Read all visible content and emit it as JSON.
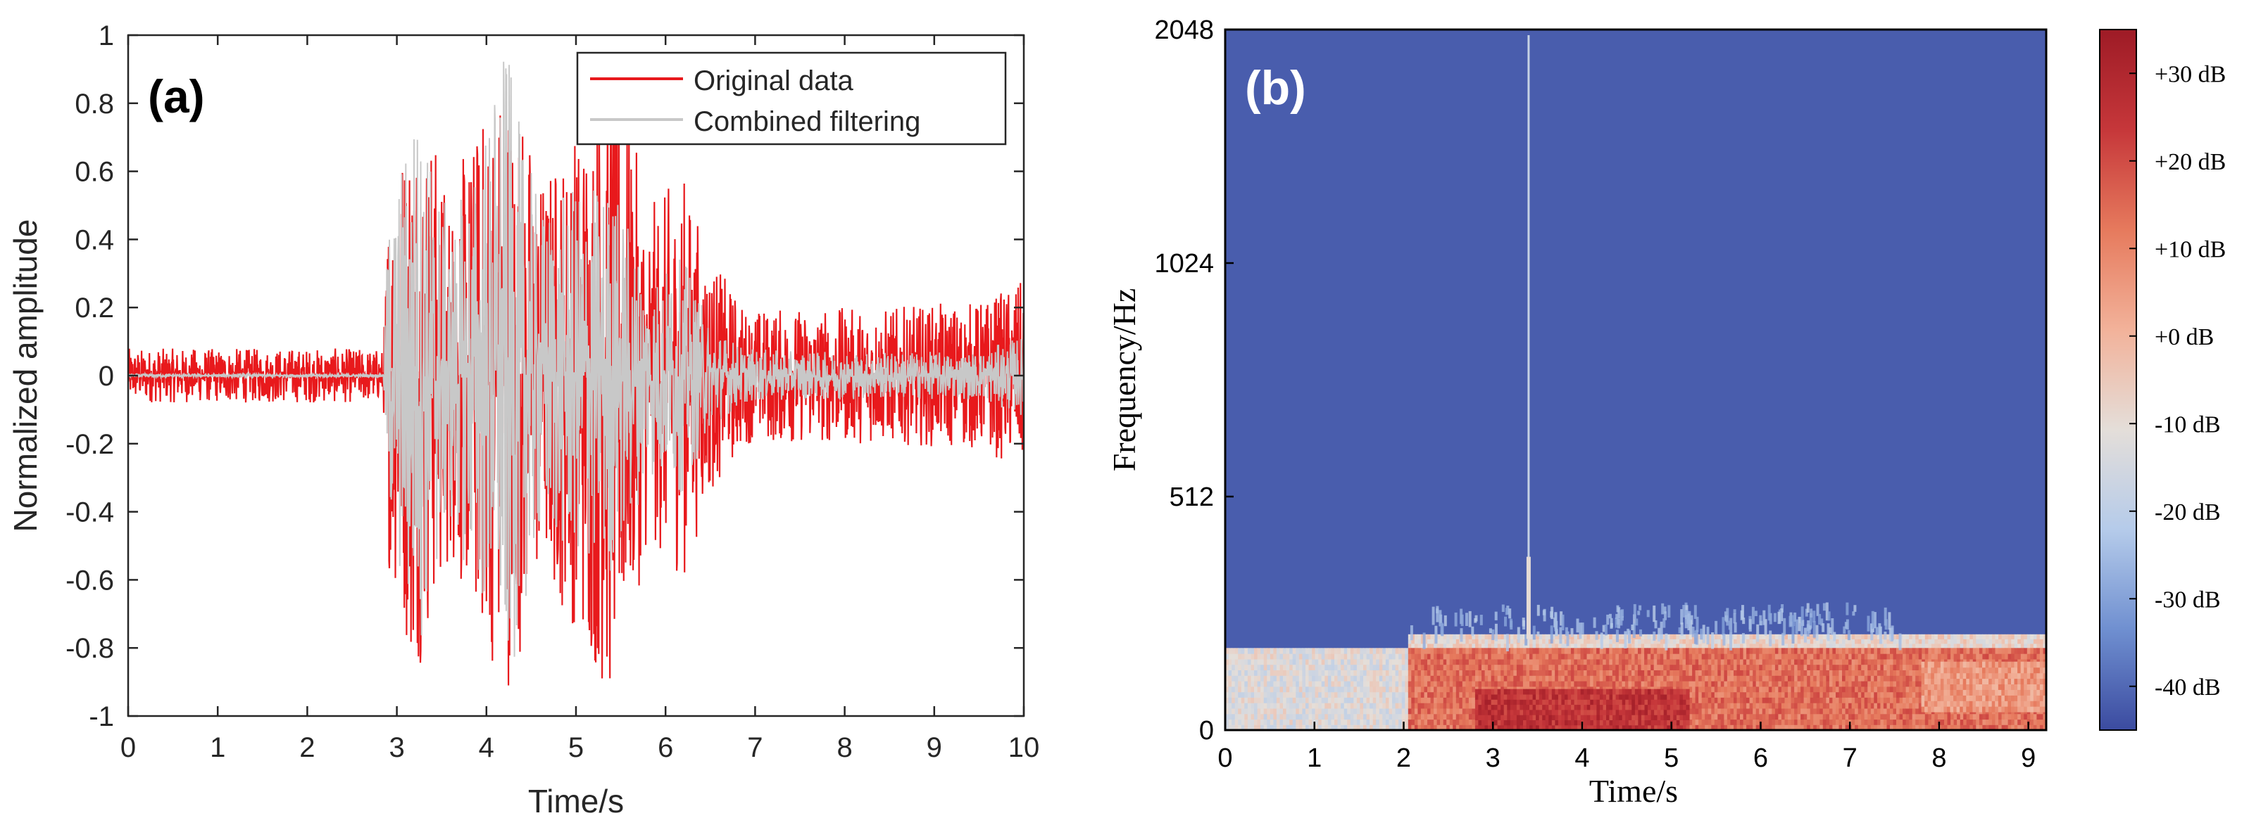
{
  "charts": [
    {
      "panel_label": "(a)",
      "chart_data": {
        "type": "line",
        "xlabel": "Time/s",
        "ylabel": "Normalized amplitude",
        "xlim": [
          0,
          10
        ],
        "ylim": [
          -1,
          1
        ],
        "x_ticks": [
          0,
          1,
          2,
          3,
          4,
          5,
          6,
          7,
          8,
          9,
          10
        ],
        "y_ticks": [
          -1,
          -0.8,
          -0.6,
          -0.4,
          -0.2,
          0,
          0.2,
          0.4,
          0.6,
          0.8,
          1
        ],
        "y_tick_labels": [
          "-1",
          "-0.8",
          "-0.6",
          "-0.4",
          "-0.2",
          "0",
          "0.2",
          "0.4",
          "0.6",
          "0.8",
          "1"
        ],
        "legend_position": "top-right",
        "series": [
          {
            "name": "Original data",
            "color": "#e8191c",
            "envelope_time": [
              0,
              2.85,
              2.9,
              3.2,
              3.6,
              3.9,
              4.2,
              4.4,
              4.6,
              5.0,
              5.4,
              5.8,
              6.2,
              6.5,
              6.9,
              7.5,
              8.5,
              9.5,
              10
            ],
            "envelope_amplitude": [
              0.08,
              0.08,
              0.55,
              0.9,
              0.55,
              0.75,
              0.95,
              0.8,
              0.6,
              0.75,
              1.0,
              0.5,
              0.6,
              0.35,
              0.2,
              0.2,
              0.2,
              0.22,
              0.28
            ]
          },
          {
            "name": "Combined filtering",
            "color": "#c8c8c8",
            "envelope_time": [
              0,
              2.85,
              2.9,
              3.2,
              3.6,
              3.9,
              4.2,
              4.4,
              4.6,
              5.0,
              5.4,
              5.8,
              6.2,
              6.5,
              6.9,
              7.5,
              8.5,
              9.5,
              10
            ],
            "envelope_amplitude": [
              0.005,
              0.005,
              0.45,
              0.85,
              0.45,
              0.65,
              1.0,
              0.7,
              0.5,
              0.55,
              0.6,
              0.3,
              0.35,
              0.15,
              0.08,
              0.07,
              0.07,
              0.07,
              0.12
            ]
          }
        ]
      }
    },
    {
      "panel_label": "(b)",
      "chart_data": {
        "type": "heatmap",
        "xlabel": "Time/s",
        "ylabel": "Frequency/Hz",
        "xlim": [
          0,
          9.2
        ],
        "x_ticks": [
          0,
          1,
          2,
          3,
          4,
          5,
          6,
          7,
          8,
          9
        ],
        "y_ticks": [
          0,
          512,
          1024,
          2048
        ],
        "y_tick_labels": [
          "0",
          "512",
          "1024",
          "2048"
        ],
        "colorbar": {
          "min_db": -45,
          "max_db": 35,
          "ticks": [
            30,
            20,
            10,
            0,
            -10,
            -20,
            -30,
            -40
          ],
          "tick_labels": [
            "+30 dB",
            "+20 dB",
            "+10 dB",
            "+0 dB",
            "-10 dB",
            "-20 dB",
            "-30 dB",
            "-40 dB"
          ],
          "colors": [
            "#3b4ba0",
            "#6f8fd0",
            "#b5cbea",
            "#e4ded9",
            "#f2b29a",
            "#e67a5d",
            "#c6373a",
            "#9e1b26"
          ]
        },
        "regions": [
          {
            "t0": 0,
            "t1": 2.05,
            "f0": 0,
            "f1": 180,
            "db": -12
          },
          {
            "t0": 2.05,
            "t1": 9.2,
            "f0": 180,
            "f1": 210,
            "db": -8
          },
          {
            "t0": 2.05,
            "t1": 9.2,
            "f0": 0,
            "f1": 180,
            "db": 14
          },
          {
            "t0": 2.8,
            "t1": 5.2,
            "f0": 0,
            "f1": 90,
            "db": 26
          },
          {
            "t0": 7.8,
            "t1": 9.2,
            "f0": 40,
            "f1": 150,
            "db": 6
          },
          {
            "t0": 0,
            "t1": 9.2,
            "f0": 210,
            "f1": 2048,
            "db": -42
          }
        ],
        "spike": {
          "time": 3.4,
          "f_top": 2048,
          "db": -18
        }
      }
    }
  ]
}
